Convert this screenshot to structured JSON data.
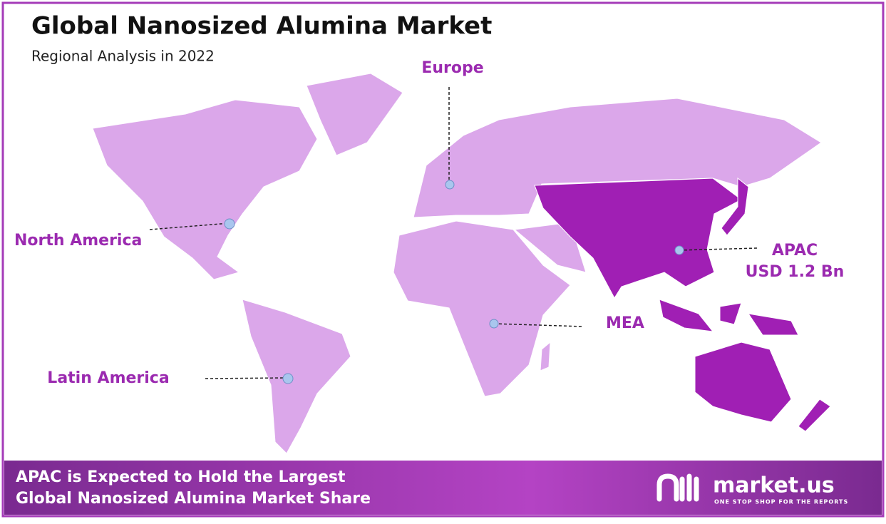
{
  "header": {
    "title": "Global Nanosized Alumina Market",
    "subtitle": "Regional Analysis in 2022"
  },
  "regions": [
    {
      "label": "North America"
    },
    {
      "label": "Europe"
    },
    {
      "label": "APAC",
      "value": "USD 1.2 Bn"
    },
    {
      "label": "MEA"
    },
    {
      "label": "Latin America"
    }
  ],
  "footer": {
    "headline": [
      "APAC is Expected to Hold the Largest",
      "Global Nanosized Alumina Market Share"
    ],
    "brand": "market.us",
    "tagline": "ONE STOP SHOP FOR THE REPORTS"
  }
}
